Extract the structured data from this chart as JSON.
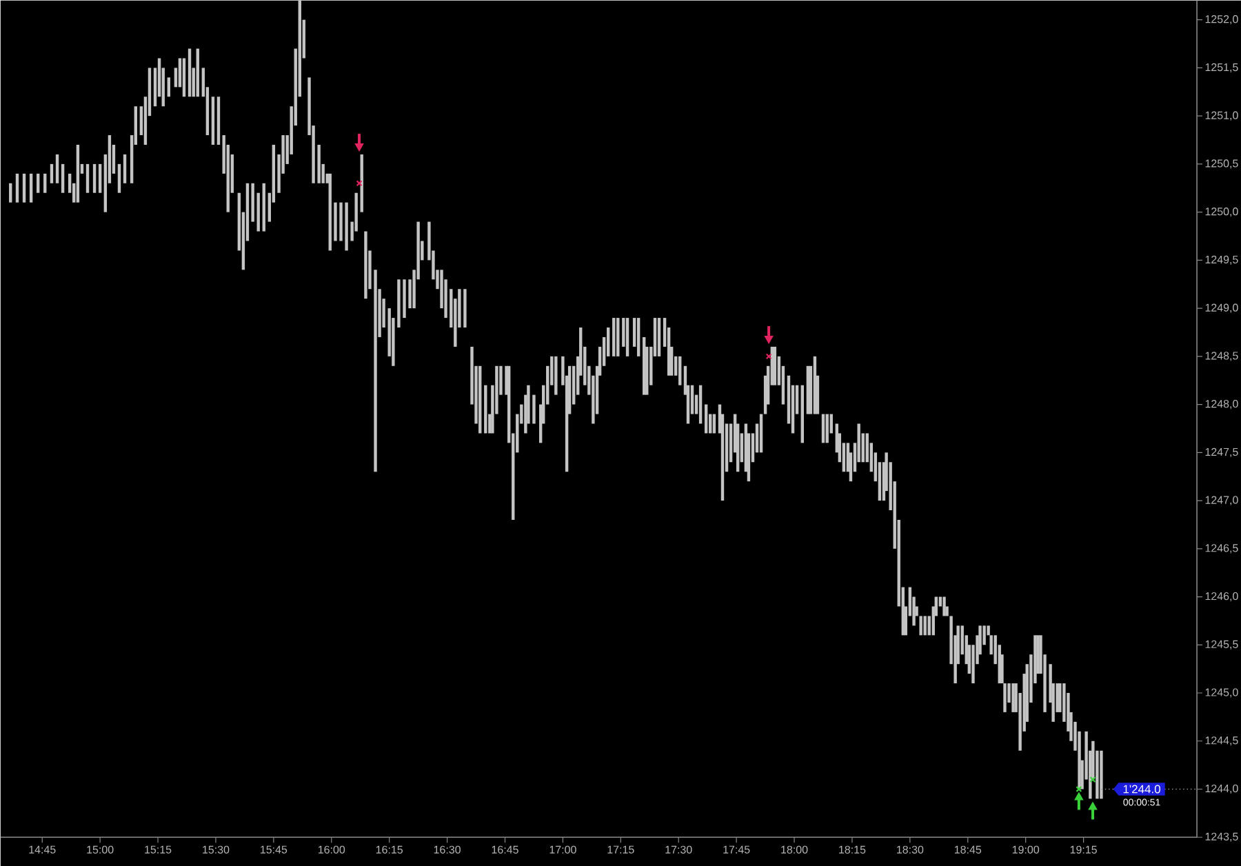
{
  "chart_data": {
    "type": "bar",
    "xlim": [
      14.57,
      19.74
    ],
    "ylim": [
      1243.5,
      1252.2
    ],
    "xticks": [
      {
        "value": 14.75,
        "label": "14:45"
      },
      {
        "value": 15.0,
        "label": "15:00"
      },
      {
        "value": 15.25,
        "label": "15:15"
      },
      {
        "value": 15.5,
        "label": "15:30"
      },
      {
        "value": 15.75,
        "label": "15:45"
      },
      {
        "value": 16.0,
        "label": "16:00"
      },
      {
        "value": 16.25,
        "label": "16:15"
      },
      {
        "value": 16.5,
        "label": "16:30"
      },
      {
        "value": 16.75,
        "label": "16:45"
      },
      {
        "value": 17.0,
        "label": "17:00"
      },
      {
        "value": 17.25,
        "label": "17:15"
      },
      {
        "value": 17.5,
        "label": "17:30"
      },
      {
        "value": 17.75,
        "label": "17:45"
      },
      {
        "value": 18.0,
        "label": "18:00"
      },
      {
        "value": 18.25,
        "label": "18:15"
      },
      {
        "value": 18.5,
        "label": "18:30"
      },
      {
        "value": 18.75,
        "label": "18:45"
      },
      {
        "value": 19.0,
        "label": "19:00"
      },
      {
        "value": 19.25,
        "label": "19:15"
      }
    ],
    "yticks": [
      {
        "value": 1243.5,
        "label": "1243,5"
      },
      {
        "value": 1244.0,
        "label": "1244,0"
      },
      {
        "value": 1244.5,
        "label": "1244,5"
      },
      {
        "value": 1245.0,
        "label": "1245,0"
      },
      {
        "value": 1245.5,
        "label": "1245,5"
      },
      {
        "value": 1246.0,
        "label": "1246,0"
      },
      {
        "value": 1246.5,
        "label": "1246,5"
      },
      {
        "value": 1247.0,
        "label": "1247,0"
      },
      {
        "value": 1247.5,
        "label": "1247,5"
      },
      {
        "value": 1248.0,
        "label": "1248,0"
      },
      {
        "value": 1248.5,
        "label": "1248,5"
      },
      {
        "value": 1249.0,
        "label": "1249,0"
      },
      {
        "value": 1249.5,
        "label": "1249,5"
      },
      {
        "value": 1250.0,
        "label": "1250,0"
      },
      {
        "value": 1250.5,
        "label": "1250,5"
      },
      {
        "value": 1251.0,
        "label": "1251,0"
      },
      {
        "value": 1251.5,
        "label": "1251,5"
      },
      {
        "value": 1252.0,
        "label": "1252,0"
      }
    ],
    "series": [
      {
        "color": "#c4c4c4",
        "x": [
          14.613,
          14.642,
          14.672,
          14.702,
          14.732,
          14.762,
          14.791,
          14.815,
          14.839,
          14.869,
          14.887,
          14.904,
          14.922,
          14.946,
          14.976,
          15.0,
          15.023,
          15.041,
          15.059,
          15.083,
          15.107,
          15.137,
          15.154,
          15.178,
          15.196,
          15.214,
          15.238,
          15.256,
          15.273,
          15.297,
          15.327,
          15.345,
          15.363,
          15.387,
          15.404,
          15.422,
          15.446,
          15.464,
          15.488,
          15.512,
          15.535,
          15.553,
          15.571,
          15.601,
          15.619,
          15.637,
          15.66,
          15.684,
          15.708,
          15.732,
          15.75,
          15.773,
          15.791,
          15.809,
          15.827,
          15.845,
          15.863,
          15.881,
          15.904,
          15.922,
          15.946,
          15.964,
          15.982,
          15.994,
          16.017,
          16.041,
          16.065,
          16.089,
          16.107,
          16.131,
          16.148,
          16.166,
          16.19,
          16.208,
          16.226,
          16.25,
          16.267,
          16.291,
          16.315,
          16.339,
          16.357,
          16.375,
          16.392,
          16.422,
          16.44,
          16.458,
          16.476,
          16.494,
          16.517,
          16.535,
          16.553,
          16.577,
          16.607,
          16.625,
          16.642,
          16.666,
          16.684,
          16.696,
          16.714,
          16.732,
          16.756,
          16.767,
          16.785,
          16.803,
          16.821,
          16.839,
          16.851,
          16.875,
          16.904,
          16.916,
          16.934,
          16.952,
          16.97,
          17.0,
          17.017,
          17.029,
          17.047,
          17.065,
          17.077,
          17.095,
          17.113,
          17.131,
          17.148,
          17.16,
          17.178,
          17.196,
          17.22,
          17.238,
          17.262,
          17.279,
          17.309,
          17.327,
          17.351,
          17.363,
          17.381,
          17.398,
          17.416,
          17.44,
          17.458,
          17.47,
          17.488,
          17.506,
          17.529,
          17.541,
          17.559,
          17.577,
          17.595,
          17.619,
          17.637,
          17.654,
          17.678,
          17.69,
          17.708,
          17.726,
          17.744,
          17.756,
          17.773,
          17.791,
          17.803,
          17.821,
          17.839,
          17.857,
          17.875,
          17.887,
          17.904,
          17.916,
          17.934,
          17.952,
          17.976,
          17.994,
          18.012,
          18.035,
          18.059,
          18.071,
          18.089,
          18.101,
          18.125,
          18.142,
          18.16,
          18.184,
          18.196,
          18.214,
          18.232,
          18.244,
          18.262,
          18.279,
          18.297,
          18.315,
          18.333,
          18.351,
          18.369,
          18.387,
          18.398,
          18.416,
          18.434,
          18.452,
          18.47,
          18.482,
          18.5,
          18.517,
          18.529,
          18.547,
          18.565,
          18.583,
          18.601,
          18.613,
          18.631,
          18.648,
          18.66,
          18.678,
          18.696,
          18.708,
          18.726,
          18.744,
          18.756,
          18.773,
          18.791,
          18.803,
          18.821,
          18.839,
          18.851,
          18.869,
          18.887,
          18.898,
          18.91,
          18.928,
          18.946,
          18.958,
          18.976,
          18.994,
          19.006,
          19.023,
          19.041,
          19.053,
          19.065,
          19.083,
          19.107,
          19.119,
          19.137,
          19.148,
          19.166,
          19.184,
          19.196,
          19.214,
          19.232,
          19.244,
          19.262,
          19.279,
          19.291,
          19.309,
          19.327
        ],
        "base": [
          1250.1,
          1250.1,
          1250.1,
          1250.1,
          1250.2,
          1250.2,
          1250.3,
          1250.3,
          1250.2,
          1250.2,
          1250.1,
          1250.1,
          1250.4,
          1250.2,
          1250.2,
          1250.2,
          1250.0,
          1250.3,
          1250.4,
          1250.2,
          1250.3,
          1250.3,
          1250.7,
          1250.8,
          1250.7,
          1251.0,
          1251.1,
          1251.2,
          1251.1,
          1251.2,
          1251.3,
          1251.3,
          1251.2,
          1251.2,
          1251.2,
          1251.2,
          1251.2,
          1250.8,
          1250.7,
          1250.7,
          1250.4,
          1250.0,
          1250.2,
          1249.6,
          1249.4,
          1249.7,
          1249.9,
          1249.8,
          1249.8,
          1249.9,
          1250.1,
          1250.2,
          1250.4,
          1250.5,
          1250.6,
          1250.9,
          1251.2,
          1251.6,
          1250.8,
          1250.3,
          1250.3,
          1250.3,
          1250.3,
          1249.6,
          1249.7,
          1249.7,
          1249.6,
          1249.7,
          1249.8,
          1250.0,
          1249.1,
          1249.2,
          1247.3,
          1248.7,
          1248.8,
          1248.5,
          1248.4,
          1248.8,
          1248.9,
          1249.0,
          1249.0,
          1249.3,
          1249.5,
          1249.5,
          1249.3,
          1249.2,
          1249.0,
          1248.9,
          1248.8,
          1248.6,
          1248.8,
          1248.8,
          1248.0,
          1247.8,
          1247.7,
          1247.7,
          1247.7,
          1247.7,
          1247.9,
          1248.1,
          1248.1,
          1247.6,
          1246.8,
          1247.5,
          1247.8,
          1247.7,
          1247.8,
          1247.8,
          1247.6,
          1247.8,
          1248.0,
          1248.2,
          1248.1,
          1248.2,
          1247.3,
          1247.9,
          1248.0,
          1248.1,
          1248.3,
          1248.2,
          1248.1,
          1247.8,
          1247.9,
          1248.3,
          1248.4,
          1248.5,
          1248.5,
          1248.5,
          1248.6,
          1248.5,
          1248.6,
          1248.5,
          1248.1,
          1248.1,
          1248.2,
          1248.5,
          1248.5,
          1248.6,
          1248.3,
          1248.3,
          1248.3,
          1248.2,
          1248.1,
          1247.8,
          1247.9,
          1247.9,
          1247.8,
          1247.7,
          1247.7,
          1247.7,
          1247.7,
          1247.0,
          1247.3,
          1247.4,
          1247.5,
          1247.3,
          1247.4,
          1247.3,
          1247.2,
          1247.4,
          1247.5,
          1247.5,
          1247.9,
          1248.0,
          1248.2,
          1248.2,
          1248.2,
          1248.0,
          1247.8,
          1247.7,
          1247.9,
          1247.6,
          1247.9,
          1247.9,
          1247.9,
          1247.9,
          1247.6,
          1247.6,
          1247.7,
          1247.5,
          1247.4,
          1247.3,
          1247.3,
          1247.2,
          1247.3,
          1247.4,
          1247.4,
          1247.4,
          1247.3,
          1247.2,
          1247.0,
          1247.0,
          1247.1,
          1246.9,
          1246.5,
          1245.9,
          1245.6,
          1245.6,
          1245.8,
          1245.7,
          1245.8,
          1245.6,
          1245.6,
          1245.6,
          1245.6,
          1245.8,
          1245.9,
          1245.8,
          1245.8,
          1245.3,
          1245.1,
          1245.3,
          1245.4,
          1245.3,
          1245.2,
          1245.1,
          1245.3,
          1245.4,
          1245.5,
          1245.6,
          1245.4,
          1245.3,
          1245.1,
          1245.1,
          1244.8,
          1244.9,
          1244.8,
          1244.8,
          1244.4,
          1244.6,
          1244.7,
          1244.9,
          1245.1,
          1245.2,
          1245.2,
          1244.8,
          1244.9,
          1244.7,
          1244.8,
          1244.8,
          1244.7,
          1244.6,
          1244.5,
          1244.4,
          1244.0,
          1244.0,
          1244.1,
          1243.9,
          1244.1,
          1243.9,
          1243.9
        ],
        "values": [
          0.2,
          0.3,
          0.3,
          0.3,
          0.2,
          0.2,
          0.2,
          0.3,
          0.3,
          0.2,
          0.2,
          0.6,
          0.1,
          0.3,
          0.3,
          0.3,
          0.6,
          0.5,
          0.3,
          0.3,
          0.3,
          0.5,
          0.4,
          0.3,
          0.5,
          0.5,
          0.4,
          0.4,
          0.4,
          0.2,
          0.2,
          0.3,
          0.4,
          0.5,
          0.3,
          0.5,
          0.3,
          0.5,
          0.5,
          0.5,
          0.4,
          0.7,
          0.4,
          0.6,
          0.6,
          0.6,
          0.4,
          0.4,
          0.5,
          0.3,
          0.6,
          0.4,
          0.4,
          0.3,
          0.5,
          0.8,
          1.0,
          0.4,
          0.6,
          0.6,
          0.4,
          0.2,
          0.1,
          0.8,
          0.4,
          0.4,
          0.5,
          0.2,
          0.4,
          0.6,
          0.7,
          0.4,
          2.1,
          0.5,
          0.3,
          0.5,
          0.5,
          0.5,
          0.4,
          0.3,
          0.4,
          0.6,
          0.2,
          0.4,
          0.3,
          0.2,
          0.4,
          0.4,
          0.4,
          0.5,
          0.4,
          0.4,
          0.6,
          0.6,
          0.7,
          0.5,
          0.2,
          0.5,
          0.5,
          0.3,
          0.3,
          0.8,
          0.9,
          0.4,
          0.2,
          0.4,
          0.4,
          0.3,
          0.4,
          0.4,
          0.4,
          0.3,
          0.4,
          0.3,
          1.0,
          0.5,
          0.4,
          0.4,
          0.5,
          0.4,
          0.3,
          0.5,
          0.5,
          0.3,
          0.3,
          0.3,
          0.4,
          0.4,
          0.3,
          0.4,
          0.3,
          0.4,
          0.6,
          0.5,
          0.4,
          0.4,
          0.4,
          0.3,
          0.5,
          0.3,
          0.2,
          0.3,
          0.3,
          0.4,
          0.3,
          0.2,
          0.4,
          0.3,
          0.2,
          0.2,
          0.3,
          0.9,
          0.5,
          0.4,
          0.4,
          0.5,
          0.3,
          0.5,
          0.5,
          0.3,
          0.3,
          0.4,
          0.4,
          0.4,
          0.4,
          0.4,
          0.3,
          0.4,
          0.5,
          0.5,
          0.3,
          0.6,
          0.5,
          0.5,
          0.6,
          0.4,
          0.3,
          0.3,
          0.2,
          0.3,
          0.3,
          0.3,
          0.3,
          0.3,
          0.3,
          0.4,
          0.3,
          0.3,
          0.3,
          0.3,
          0.4,
          0.4,
          0.4,
          0.5,
          0.7,
          0.9,
          0.5,
          0.3,
          0.3,
          0.3,
          0.1,
          0.2,
          0.2,
          0.2,
          0.3,
          0.2,
          0.1,
          0.2,
          0.1,
          0.5,
          0.5,
          0.4,
          0.3,
          0.3,
          0.3,
          0.4,
          0.3,
          0.3,
          0.2,
          0.1,
          0.2,
          0.3,
          0.4,
          0.3,
          0.3,
          0.2,
          0.3,
          0.3,
          0.6,
          0.6,
          0.6,
          0.5,
          0.5,
          0.4,
          0.4,
          0.6,
          0.4,
          0.4,
          0.3,
          0.3,
          0.4,
          0.4,
          0.3,
          0.3,
          0.6,
          0.3,
          0.5,
          0.5,
          0.4,
          0.5,
          0.5
        ]
      },
      {
        "type": "scatter",
        "color": "#e0245e",
        "marker": "cross",
        "x": [
          16.12,
          17.89
        ],
        "values": [
          1250.3,
          1248.5
        ]
      },
      {
        "type": "scatter",
        "color": "#3ad13a",
        "marker": "cross",
        "x": [
          19.23,
          19.29
        ],
        "values": [
          1244.0,
          1244.1
        ]
      }
    ],
    "ref_lines": [
      {
        "axis": "y",
        "value": 1244.0,
        "label": "1'244.0",
        "line_style": "dotted"
      }
    ],
    "annotations": [
      "00:00:51"
    ]
  }
}
